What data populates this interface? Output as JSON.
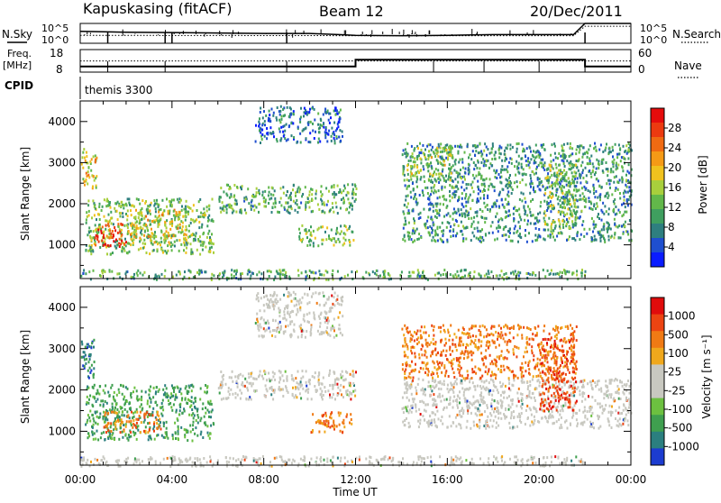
{
  "header": {
    "station": "Kapuskasing (fitACF)",
    "beam": "Beam 12",
    "date": "20/Dec/2011"
  },
  "noise_panel": {
    "left_label": "N.Sky",
    "right_label": "N.Search",
    "left_ticks": [
      "10^5",
      "10^0"
    ],
    "right_ticks": [
      "10^5",
      "10^0"
    ]
  },
  "freq_panel": {
    "left_label_1": "Freq.",
    "left_label_2": "[MHz]",
    "right_label": "Nave",
    "left_ticks": [
      "18",
      "8"
    ],
    "right_ticks": [
      "60",
      "0"
    ]
  },
  "cpid_panel": {
    "label": "CPID",
    "value": "themis 3300"
  },
  "power_panel": {
    "ylabel": "Slant Range [km]",
    "colorbar_label": "Power [dB]",
    "colorbar_ticks": [
      "28",
      "24",
      "20",
      "16",
      "12",
      "8",
      "4"
    ],
    "colors": [
      "#0a1cff",
      "#1f4fcf",
      "#2e7f7f",
      "#3f9f5f",
      "#62b84a",
      "#a8cf3c",
      "#f0c21e",
      "#f59a16",
      "#f06a12",
      "#ec3a10",
      "#e50c0c"
    ]
  },
  "velocity_panel": {
    "ylabel": "Slant Range [km]",
    "colorbar_label": "Velocity [m s⁻¹]",
    "colorbar_ticks": [
      "1000",
      "500",
      "100",
      "25",
      "-25",
      "-100",
      "-500",
      "-1000"
    ],
    "colors": [
      "#1c3cd0",
      "#2b7f7f",
      "#3f9f4f",
      "#6cc040",
      "#c8c8c0",
      "#c8c8c0",
      "#f0a81c",
      "#f07a14",
      "#ec4412",
      "#e00c0c"
    ]
  },
  "x_axis": {
    "label": "Time UT",
    "ticks": [
      "00:00",
      "04:00",
      "08:00",
      "12:00",
      "16:00",
      "20:00",
      "00:00"
    ]
  },
  "chart_data": [
    {
      "type": "line",
      "title": "Kapuskasing (fitACF) Beam 12 20/Dec/2011",
      "panel": "noise",
      "series": [
        {
          "name": "N.Sky",
          "x": [
            0,
            1,
            2,
            4,
            6,
            8,
            10,
            12,
            14,
            16,
            18,
            20,
            21.5,
            22,
            24
          ],
          "values": [
            1000,
            800,
            600,
            500,
            400,
            300,
            300,
            100,
            80,
            100,
            150,
            150,
            150,
            100000,
            100000
          ]
        },
        {
          "name": "N.Search",
          "x": [
            0,
            12,
            21.5,
            22,
            24
          ],
          "values": [
            100,
            80,
            80,
            20000,
            20000
          ]
        }
      ],
      "x_unit": "hours UT",
      "xlim": [
        0,
        24
      ]
    },
    {
      "type": "line",
      "panel": "freq",
      "series": [
        {
          "name": "Freq",
          "x": [
            0,
            12,
            12,
            22,
            22,
            24
          ],
          "values": [
            10.5,
            10.5,
            13.5,
            13.5,
            10.5,
            10.5
          ]
        },
        {
          "name": "Nave",
          "x": [
            0,
            24
          ],
          "values": [
            20,
            20
          ]
        }
      ],
      "xlim": [
        0,
        24
      ]
    },
    {
      "type": "heatmap",
      "panel": "power",
      "ylabel": "Slant Range [km]",
      "ylim": [
        180,
        4500
      ],
      "y_ticks": [
        1000,
        2000,
        3000,
        4000
      ],
      "xlim": [
        0,
        24
      ],
      "colorbar_range": [
        0,
        30
      ],
      "regions": [
        {
          "t0": 0.0,
          "t1": 0.7,
          "r0": 2400,
          "r1": 3400,
          "level": 18
        },
        {
          "t0": 0.2,
          "t1": 5.8,
          "r0": 800,
          "r1": 2150,
          "level": 12
        },
        {
          "t0": 0.6,
          "t1": 2.0,
          "r0": 950,
          "r1": 1550,
          "level": 27
        },
        {
          "t0": 2.0,
          "t1": 4.6,
          "r0": 1050,
          "r1": 1900,
          "level": 17
        },
        {
          "t0": 6.0,
          "t1": 12.0,
          "r0": 1800,
          "r1": 2500,
          "level": 10
        },
        {
          "t0": 7.6,
          "t1": 11.4,
          "r0": 3500,
          "r1": 4400,
          "level": 5
        },
        {
          "t0": 9.5,
          "t1": 11.9,
          "r0": 1000,
          "r1": 1500,
          "level": 13
        },
        {
          "t0": 14.0,
          "t1": 24.0,
          "r0": 1100,
          "r1": 3500,
          "level": 8
        },
        {
          "t0": 14.2,
          "t1": 16.2,
          "r0": 2600,
          "r1": 3400,
          "level": 14
        },
        {
          "t0": 20.2,
          "t1": 21.6,
          "r0": 1400,
          "r1": 3000,
          "level": 13
        },
        {
          "t0": 0.0,
          "t1": 22.0,
          "r0": 180,
          "r1": 420,
          "level": 10
        }
      ]
    },
    {
      "type": "heatmap",
      "panel": "velocity",
      "ylabel": "Slant Range [km]",
      "ylim": [
        180,
        4500
      ],
      "y_ticks": [
        1000,
        2000,
        3000,
        4000
      ],
      "xlim": [
        0,
        24
      ],
      "colorbar_range": [
        -1000,
        1000
      ],
      "regions": [
        {
          "t0": 0.0,
          "t1": 0.6,
          "r0": 2300,
          "r1": 3400,
          "level": 300
        },
        {
          "t0": 0.2,
          "t1": 5.8,
          "r0": 800,
          "r1": 2150,
          "level": 80
        },
        {
          "t0": 1.0,
          "t1": 3.5,
          "r0": 1000,
          "r1": 1500,
          "level": -150
        },
        {
          "t0": 6.0,
          "t1": 12.0,
          "r0": 1800,
          "r1": 2500,
          "level": 0
        },
        {
          "t0": 7.6,
          "t1": 11.4,
          "r0": 3300,
          "r1": 4400,
          "level": 0
        },
        {
          "t0": 10.0,
          "t1": 11.9,
          "r0": 1000,
          "r1": 1500,
          "level": -150
        },
        {
          "t0": 14.0,
          "t1": 24.0,
          "r0": 1100,
          "r1": 2300,
          "level": 0
        },
        {
          "t0": 14.0,
          "t1": 21.6,
          "r0": 2300,
          "r1": 3600,
          "level": -200
        },
        {
          "t0": 20.0,
          "t1": 21.6,
          "r0": 1500,
          "r1": 3300,
          "level": -300
        },
        {
          "t0": 0.0,
          "t1": 22.0,
          "r0": 180,
          "r1": 420,
          "level": 0
        }
      ]
    }
  ]
}
